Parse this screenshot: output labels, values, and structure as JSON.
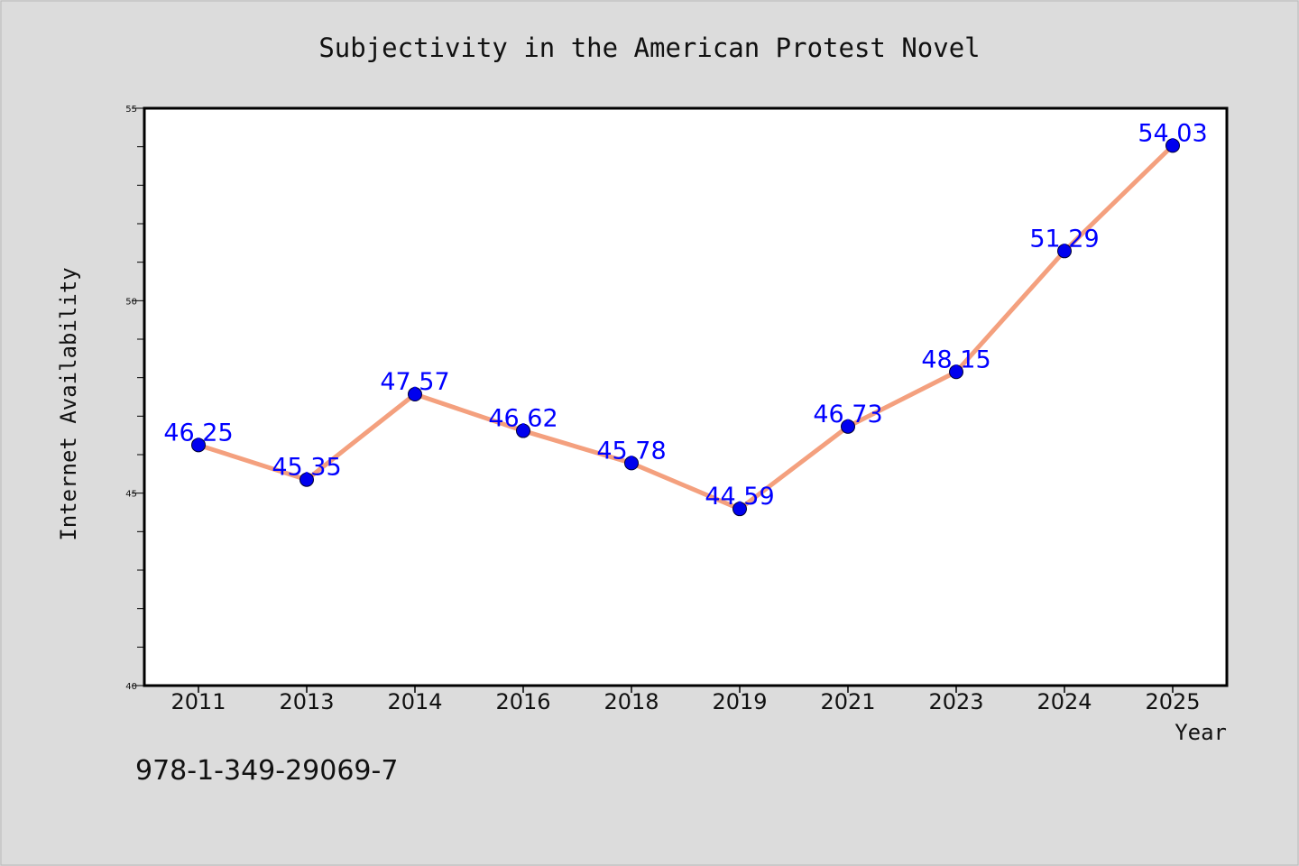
{
  "chart_data": {
    "type": "line",
    "title": "Subjectivity in the American Protest Novel",
    "xlabel": "Year",
    "ylabel": "Internet Availability",
    "categories": [
      "2011",
      "2013",
      "2014",
      "2016",
      "2018",
      "2019",
      "2021",
      "2023",
      "2024",
      "2025"
    ],
    "values": [
      46.25,
      45.35,
      47.57,
      46.62,
      45.78,
      44.59,
      46.73,
      48.15,
      51.29,
      54.03
    ],
    "value_labels": [
      "46.25",
      "45.35",
      "47.57",
      "46.62",
      "45.78",
      "44.59",
      "46.73",
      "48.15",
      "51.29",
      "54.03"
    ],
    "ylim": [
      40,
      55
    ],
    "yticks": [
      "40",
      "45",
      "50",
      "55"
    ],
    "grid": false,
    "line_color": "#f4a07e",
    "marker_color": "#0000ee",
    "label_color": "#0000ff"
  },
  "footer": {
    "isbn": "978-1-349-29069-7"
  }
}
